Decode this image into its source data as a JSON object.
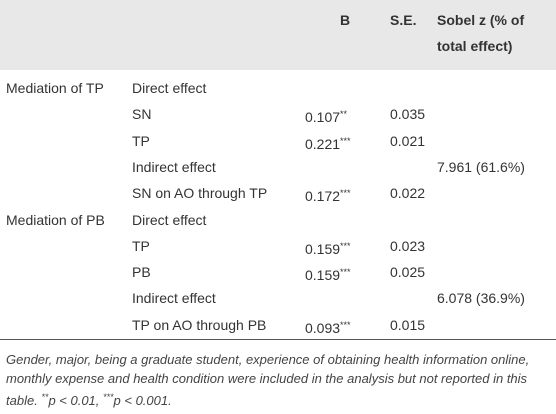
{
  "table": {
    "header": [
      "",
      "",
      "B",
      "S.E.",
      "Sobel z (% of total effect)"
    ],
    "rows": [
      [
        "Mediation of TP",
        "Direct effect",
        null,
        null,
        null
      ],
      [
        null,
        "SN",
        {
          "value": "0.107",
          "sig": "**"
        },
        "0.035",
        null
      ],
      [
        null,
        "TP",
        {
          "value": "0.221",
          "sig": "***"
        },
        "0.021",
        null
      ],
      [
        null,
        "Indirect effect",
        null,
        null,
        "7.961 (61.6%)"
      ],
      [
        null,
        "SN on AO through TP",
        {
          "value": "0.172",
          "sig": "***"
        },
        "0.022",
        null
      ],
      [
        "Mediation of PB",
        "Direct effect",
        null,
        null,
        null
      ],
      [
        null,
        "TP",
        {
          "value": "0.159",
          "sig": "***"
        },
        "0.023",
        null
      ],
      [
        null,
        "PB",
        {
          "value": "0.159",
          "sig": "***"
        },
        "0.025",
        null
      ],
      [
        null,
        "Indirect effect",
        null,
        null,
        "6.078 (36.9%)"
      ],
      [
        null,
        "TP on AO through PB",
        {
          "value": "0.093",
          "sig": "***"
        },
        "0.015",
        null
      ]
    ]
  },
  "note": [
    {
      "text": "Gender, major, being a graduate student, experience of obtaining health information online, monthly expense and health condition were included in the analysis but not reported in this table. ",
      "style": "plain"
    },
    {
      "text": "**",
      "style": "sup"
    },
    {
      "text": "p",
      "style": "italic"
    },
    {
      "text": " < 0.01,  ",
      "style": "plain"
    },
    {
      "text": "***",
      "style": "sup"
    },
    {
      "text": "p",
      "style": "italic"
    },
    {
      "text": " < 0.001.",
      "style": "plain"
    }
  ]
}
